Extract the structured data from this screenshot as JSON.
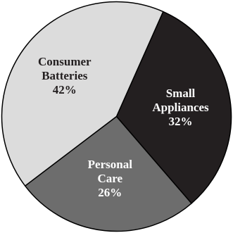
{
  "chart_data": {
    "type": "pie",
    "title": "",
    "slices": [
      {
        "label_lines": [
          "Small",
          "Appliances"
        ],
        "value": 32,
        "value_label": "32%",
        "color": "#231f20",
        "text_color": "#ffffff"
      },
      {
        "label_lines": [
          "Personal",
          "Care"
        ],
        "value": 26,
        "value_label": "26%",
        "color": "#6d6d6d",
        "text_color": "#ffffff"
      },
      {
        "label_lines": [
          "Consumer",
          "Batteries"
        ],
        "value": 42,
        "value_label": "42%",
        "color": "#dcdcdc",
        "text_color": "#231f20"
      }
    ],
    "start_angle_deg": 24,
    "direction": "clockwise",
    "outline_color": "#000000",
    "legend": "none"
  }
}
